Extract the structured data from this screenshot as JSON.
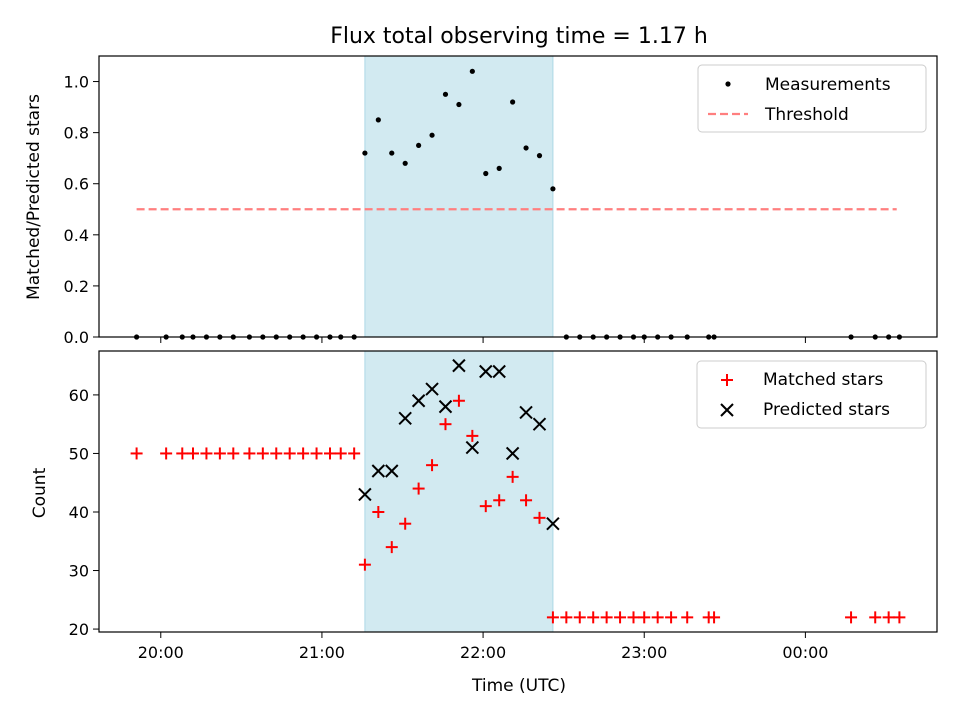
{
  "colors": {
    "shade": "#add8e6",
    "measurement": "#000000",
    "threshold": "#ff7f7f",
    "matched": "#ff0000",
    "predicted": "#000000"
  },
  "chart_data": [
    {
      "type": "scatter",
      "title": "Flux total observing time = 1.17 h",
      "xlabel": "",
      "ylabel": "Matched/Predicted stars",
      "xlim": [
        "19:37",
        "00:49"
      ],
      "ylim": [
        0,
        1.1
      ],
      "yticks": [
        "0.0",
        "0.2",
        "0.4",
        "0.6",
        "0.8",
        "1.0"
      ],
      "shaded_region": [
        "21:16",
        "22:26"
      ],
      "legend": [
        "Measurements",
        "Threshold"
      ],
      "legend_position": "upper right",
      "threshold": {
        "name": "Threshold",
        "y": 0.5,
        "x_range": [
          "19:51",
          "00:34"
        ]
      },
      "series": [
        {
          "name": "Measurements",
          "points": [
            [
              "19:51",
              0.0
            ],
            [
              "20:02",
              0.0
            ],
            [
              "20:08",
              0.0
            ],
            [
              "20:12",
              0.0
            ],
            [
              "20:17",
              0.0
            ],
            [
              "20:22",
              0.0
            ],
            [
              "20:27",
              0.0
            ],
            [
              "20:33",
              0.0
            ],
            [
              "20:38",
              0.0
            ],
            [
              "20:43",
              0.0
            ],
            [
              "20:48",
              0.0
            ],
            [
              "20:53",
              0.0
            ],
            [
              "20:58",
              0.0
            ],
            [
              "21:03",
              0.0
            ],
            [
              "21:07",
              0.0
            ],
            [
              "21:12",
              0.0
            ],
            [
              "21:16",
              0.72
            ],
            [
              "21:21",
              0.85
            ],
            [
              "21:26",
              0.72
            ],
            [
              "21:31",
              0.68
            ],
            [
              "21:36",
              0.75
            ],
            [
              "21:41",
              0.79
            ],
            [
              "21:46",
              0.95
            ],
            [
              "21:51",
              0.91
            ],
            [
              "21:56",
              1.04
            ],
            [
              "22:01",
              0.64
            ],
            [
              "22:06",
              0.66
            ],
            [
              "22:11",
              0.92
            ],
            [
              "22:16",
              0.74
            ],
            [
              "22:21",
              0.71
            ],
            [
              "22:26",
              0.58
            ],
            [
              "22:31",
              0.0
            ],
            [
              "22:36",
              0.0
            ],
            [
              "22:41",
              0.0
            ],
            [
              "22:46",
              0.0
            ],
            [
              "22:51",
              0.0
            ],
            [
              "22:56",
              0.0
            ],
            [
              "23:00",
              0.0
            ],
            [
              "23:05",
              0.0
            ],
            [
              "23:10",
              0.0
            ],
            [
              "23:16",
              0.0
            ],
            [
              "23:24",
              0.0
            ],
            [
              "23:26",
              0.0
            ],
            [
              "00:17",
              0.0
            ],
            [
              "00:26",
              0.0
            ],
            [
              "00:31",
              0.0
            ],
            [
              "00:35",
              0.0
            ]
          ]
        }
      ]
    },
    {
      "type": "scatter",
      "title": "",
      "xlabel": "Time (UTC)",
      "ylabel": "Count",
      "xlim": [
        "19:37",
        "00:49"
      ],
      "ylim": [
        19.5,
        67.5
      ],
      "xticks": [
        "20:00",
        "21:00",
        "22:00",
        "23:00",
        "00:00"
      ],
      "yticks": [
        "20",
        "30",
        "40",
        "50",
        "60"
      ],
      "shaded_region": [
        "21:16",
        "22:26"
      ],
      "legend": [
        "Matched stars",
        "Predicted stars"
      ],
      "legend_position": "upper right",
      "series": [
        {
          "name": "Matched stars",
          "marker": "+",
          "points": [
            [
              "19:51",
              50
            ],
            [
              "20:02",
              50
            ],
            [
              "20:08",
              50
            ],
            [
              "20:12",
              50
            ],
            [
              "20:17",
              50
            ],
            [
              "20:22",
              50
            ],
            [
              "20:27",
              50
            ],
            [
              "20:33",
              50
            ],
            [
              "20:38",
              50
            ],
            [
              "20:43",
              50
            ],
            [
              "20:48",
              50
            ],
            [
              "20:53",
              50
            ],
            [
              "20:58",
              50
            ],
            [
              "21:03",
              50
            ],
            [
              "21:07",
              50
            ],
            [
              "21:12",
              50
            ],
            [
              "21:16",
              31
            ],
            [
              "21:21",
              40
            ],
            [
              "21:26",
              34
            ],
            [
              "21:31",
              38
            ],
            [
              "21:36",
              44
            ],
            [
              "21:41",
              48
            ],
            [
              "21:46",
              55
            ],
            [
              "21:51",
              59
            ],
            [
              "21:56",
              53
            ],
            [
              "22:01",
              41
            ],
            [
              "22:06",
              42
            ],
            [
              "22:11",
              46
            ],
            [
              "22:16",
              42
            ],
            [
              "22:21",
              39
            ],
            [
              "22:26",
              22
            ],
            [
              "22:31",
              22
            ],
            [
              "22:36",
              22
            ],
            [
              "22:41",
              22
            ],
            [
              "22:46",
              22
            ],
            [
              "22:51",
              22
            ],
            [
              "22:56",
              22
            ],
            [
              "23:00",
              22
            ],
            [
              "23:05",
              22
            ],
            [
              "23:10",
              22
            ],
            [
              "23:16",
              22
            ],
            [
              "23:24",
              22
            ],
            [
              "23:26",
              22
            ],
            [
              "00:17",
              22
            ],
            [
              "00:26",
              22
            ],
            [
              "00:31",
              22
            ],
            [
              "00:35",
              22
            ]
          ]
        },
        {
          "name": "Predicted stars",
          "marker": "x",
          "points": [
            [
              "21:16",
              43
            ],
            [
              "21:21",
              47
            ],
            [
              "21:26",
              47
            ],
            [
              "21:31",
              56
            ],
            [
              "21:36",
              59
            ],
            [
              "21:41",
              61
            ],
            [
              "21:46",
              58
            ],
            [
              "21:51",
              65
            ],
            [
              "21:56",
              51
            ],
            [
              "22:01",
              64
            ],
            [
              "22:06",
              64
            ],
            [
              "22:11",
              50
            ],
            [
              "22:16",
              57
            ],
            [
              "22:21",
              55
            ],
            [
              "22:26",
              38
            ]
          ]
        }
      ]
    }
  ]
}
